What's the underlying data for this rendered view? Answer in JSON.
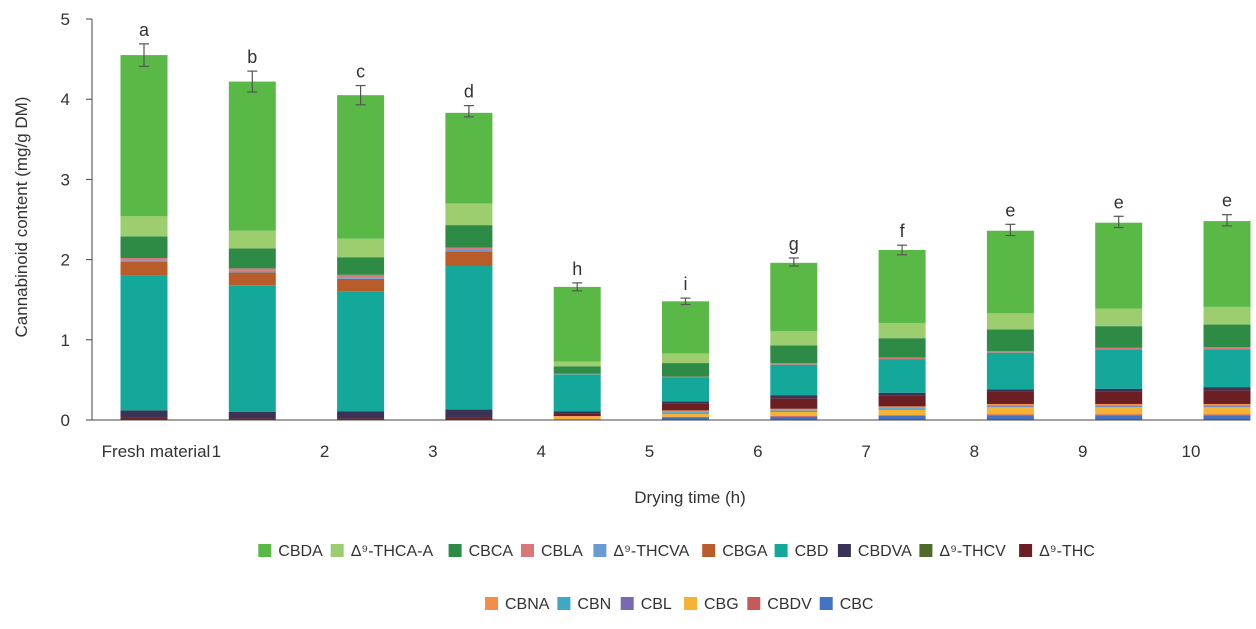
{
  "chart_data": {
    "type": "bar",
    "stacked": true,
    "title": "",
    "xlabel": "Drying time (h)",
    "ylabel": "Cannabinoid content (mg/g DM)",
    "ylim": [
      0,
      5
    ],
    "yticks": [
      "0",
      "1",
      "2",
      "3",
      "4",
      "5"
    ],
    "grid": false,
    "legend_position": "bottom",
    "categories": [
      "Fresh material",
      "1",
      "2",
      "3",
      "4",
      "5",
      "6",
      "7",
      "8",
      "9",
      "10"
    ],
    "significance_letters": [
      "a",
      "b",
      "c",
      "d",
      "h",
      "i",
      "g",
      "f",
      "e",
      "e",
      "e"
    ],
    "totals": [
      4.55,
      4.22,
      4.05,
      3.85,
      1.66,
      1.48,
      1.97,
      2.12,
      2.37,
      2.47,
      2.49
    ],
    "error": [
      0.14,
      0.13,
      0.12,
      0.07,
      0.05,
      0.04,
      0.05,
      0.06,
      0.07,
      0.07,
      0.07
    ],
    "series": [
      {
        "name": "CBC",
        "color": "#4472c4",
        "values": [
          0.0,
          0.0,
          0.0,
          0.0,
          0.01,
          0.03,
          0.04,
          0.05,
          0.06,
          0.06,
          0.06
        ]
      },
      {
        "name": "CBDV",
        "color": "#c55a5a",
        "values": [
          0.0,
          0.0,
          0.0,
          0.0,
          0.0,
          0.01,
          0.01,
          0.01,
          0.01,
          0.01,
          0.01
        ]
      },
      {
        "name": "CBG",
        "color": "#f5b335",
        "values": [
          0.0,
          0.0,
          0.0,
          0.0,
          0.03,
          0.04,
          0.05,
          0.07,
          0.09,
          0.09,
          0.09
        ]
      },
      {
        "name": "CBL",
        "color": "#7b68b0",
        "values": [
          0.0,
          0.0,
          0.0,
          0.0,
          0.0,
          0.01,
          0.01,
          0.01,
          0.01,
          0.01,
          0.01
        ]
      },
      {
        "name": "CBN",
        "color": "#40a8c4",
        "values": [
          0.0,
          0.0,
          0.0,
          0.0,
          0.0,
          0.01,
          0.01,
          0.01,
          0.01,
          0.01,
          0.01
        ]
      },
      {
        "name": "CBNA",
        "color": "#f48c4a",
        "values": [
          0.0,
          0.0,
          0.0,
          0.0,
          0.01,
          0.02,
          0.02,
          0.02,
          0.02,
          0.02,
          0.02
        ]
      },
      {
        "name": "Δ⁹-THC",
        "color": "#6b1f22",
        "values": [
          0.03,
          0.02,
          0.02,
          0.03,
          0.03,
          0.09,
          0.13,
          0.14,
          0.15,
          0.16,
          0.17
        ]
      },
      {
        "name": "Δ⁹-THCV",
        "color": "#4e6b2a",
        "values": [
          0.0,
          0.0,
          0.0,
          0.0,
          0.0,
          0.0,
          0.0,
          0.0,
          0.0,
          0.0,
          0.0
        ]
      },
      {
        "name": "CBDVA",
        "color": "#3a3356",
        "values": [
          0.09,
          0.08,
          0.09,
          0.1,
          0.03,
          0.02,
          0.04,
          0.03,
          0.03,
          0.03,
          0.04
        ]
      },
      {
        "name": "CBD",
        "color": "#14a89b",
        "values": [
          1.68,
          1.58,
          1.49,
          1.79,
          0.46,
          0.3,
          0.38,
          0.42,
          0.46,
          0.49,
          0.47
        ]
      },
      {
        "name": "CBGA",
        "color": "#b85c2a",
        "values": [
          0.17,
          0.16,
          0.16,
          0.18,
          0.0,
          0.0,
          0.0,
          0.0,
          0.0,
          0.0,
          0.0
        ]
      },
      {
        "name": "Δ⁹-THCVA",
        "color": "#6a9bd3",
        "values": [
          0.02,
          0.02,
          0.02,
          0.02,
          0.0,
          0.0,
          0.0,
          0.0,
          0.0,
          0.0,
          0.0
        ]
      },
      {
        "name": "CBLA",
        "color": "#d9787c",
        "values": [
          0.03,
          0.03,
          0.03,
          0.03,
          0.01,
          0.01,
          0.02,
          0.02,
          0.02,
          0.02,
          0.03
        ]
      },
      {
        "name": "CBCA",
        "color": "#2e8b45",
        "values": [
          0.27,
          0.25,
          0.22,
          0.28,
          0.09,
          0.17,
          0.22,
          0.24,
          0.27,
          0.27,
          0.28
        ]
      },
      {
        "name": "Δ⁹-THCA-A",
        "color": "#9ccd6e",
        "values": [
          0.25,
          0.22,
          0.23,
          0.27,
          0.06,
          0.12,
          0.18,
          0.19,
          0.2,
          0.22,
          0.22
        ]
      },
      {
        "name": "CBDA",
        "color": "#5ab946",
        "values": [
          2.01,
          1.86,
          1.79,
          1.13,
          0.93,
          0.65,
          0.85,
          0.91,
          1.03,
          1.07,
          1.07
        ]
      }
    ],
    "legend_rows": [
      [
        "CBDA",
        "Δ⁹-THCA-A",
        "CBCA",
        "CBLA",
        "Δ⁹-THCVA",
        "CBGA",
        "CBD",
        "CBDVA",
        "Δ⁹-THCV",
        "Δ⁹-THC"
      ],
      [
        "CBNA",
        "CBN",
        "CBL",
        "CBG",
        "CBDV",
        "CBC"
      ]
    ]
  }
}
